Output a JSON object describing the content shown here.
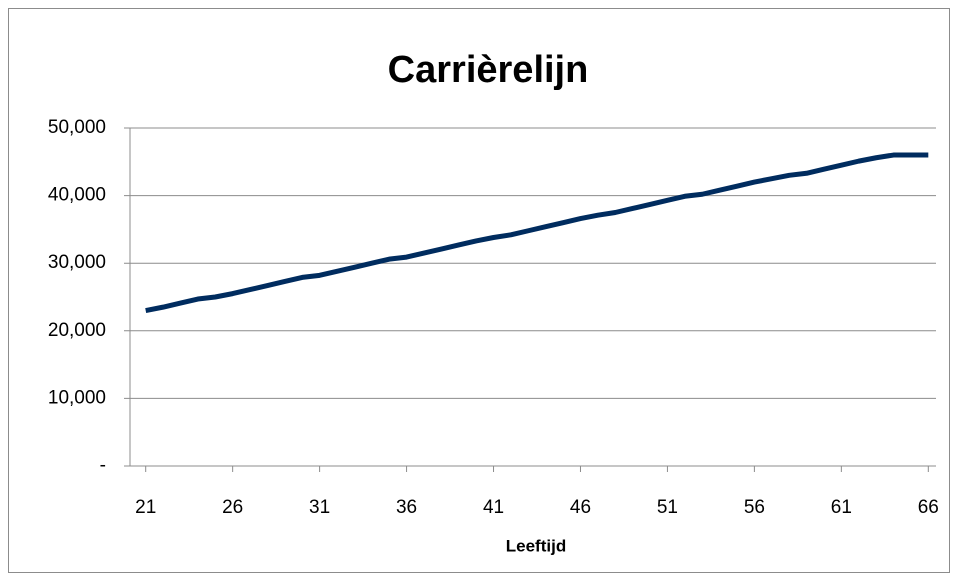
{
  "chart_data": {
    "type": "line",
    "title": "Carrièrelijn",
    "x_label": "Leeftijd",
    "x": [
      21,
      22,
      23,
      24,
      25,
      26,
      27,
      28,
      29,
      30,
      31,
      32,
      33,
      34,
      35,
      36,
      37,
      38,
      39,
      40,
      41,
      42,
      43,
      44,
      45,
      46,
      47,
      48,
      49,
      50,
      51,
      52,
      53,
      54,
      55,
      56,
      57,
      58,
      59,
      60,
      61,
      62,
      63,
      64,
      65,
      66
    ],
    "series": [
      {
        "name": "Carrièrelijn",
        "color": "#002c5f",
        "values": [
          23000,
          23500,
          24100,
          24700,
          25000,
          25500,
          26100,
          26700,
          27300,
          27900,
          28200,
          28800,
          29400,
          30000,
          30600,
          30900,
          31500,
          32100,
          32700,
          33300,
          33800,
          34200,
          34800,
          35400,
          36000,
          36600,
          37100,
          37500,
          38100,
          38700,
          39300,
          39900,
          40200,
          40800,
          41400,
          42000,
          42500,
          43000,
          43300,
          43900,
          44500,
          45100,
          45600,
          46000,
          46000,
          46000
        ]
      }
    ],
    "xlim": [
      20.5,
      66.5
    ],
    "xticks": [
      21,
      26,
      31,
      36,
      41,
      46,
      51,
      56,
      61,
      66
    ],
    "ylim": [
      0,
      50000
    ],
    "yticks": [
      {
        "value": 0,
        "label": "-"
      },
      {
        "value": 10000,
        "label": "10,000"
      },
      {
        "value": 20000,
        "label": "20,000"
      },
      {
        "value": 30000,
        "label": "30,000"
      },
      {
        "value": 40000,
        "label": "40,000"
      },
      {
        "value": 50000,
        "label": "50,000"
      }
    ],
    "grid": true
  }
}
